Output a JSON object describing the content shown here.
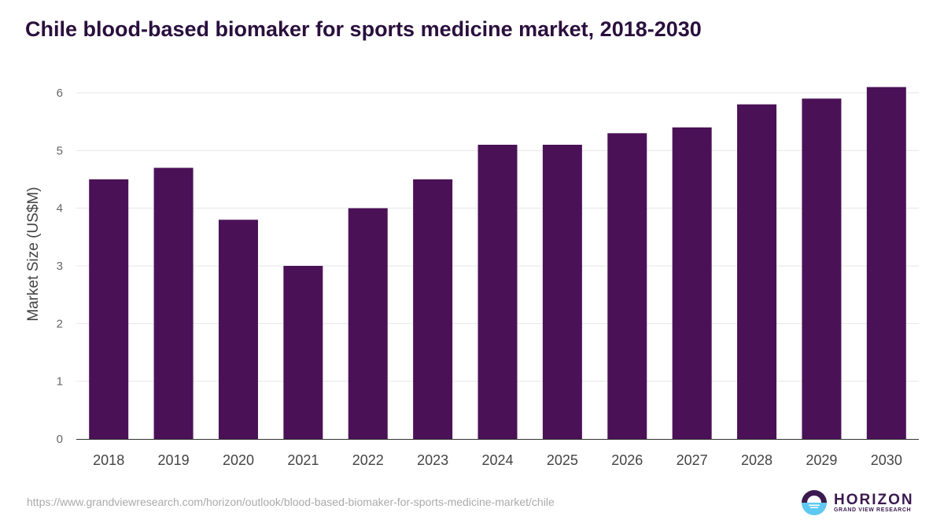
{
  "chart_data": {
    "type": "bar",
    "title": "Chile blood-based biomaker for sports medicine market, 2018-2030",
    "xlabel": "",
    "ylabel": "Market Size (US$M)",
    "categories": [
      "2018",
      "2019",
      "2020",
      "2021",
      "2022",
      "2023",
      "2024",
      "2025",
      "2026",
      "2027",
      "2028",
      "2029",
      "2030"
    ],
    "values": [
      4.5,
      4.7,
      3.8,
      3.0,
      4.0,
      4.5,
      5.1,
      5.1,
      5.3,
      5.4,
      5.8,
      5.9,
      6.1
    ],
    "ylim": [
      0,
      6
    ],
    "yticks": [
      0,
      1,
      2,
      3,
      4,
      5,
      6
    ],
    "grid": true,
    "bar_color": "#4b1157"
  },
  "source": "https://www.grandviewresearch.com/horizon/outlook/blood-based-biomaker-for-sports-medicine-market/chile",
  "logo": {
    "name": "HORIZON",
    "sub": "GRAND VIEW RESEARCH"
  }
}
